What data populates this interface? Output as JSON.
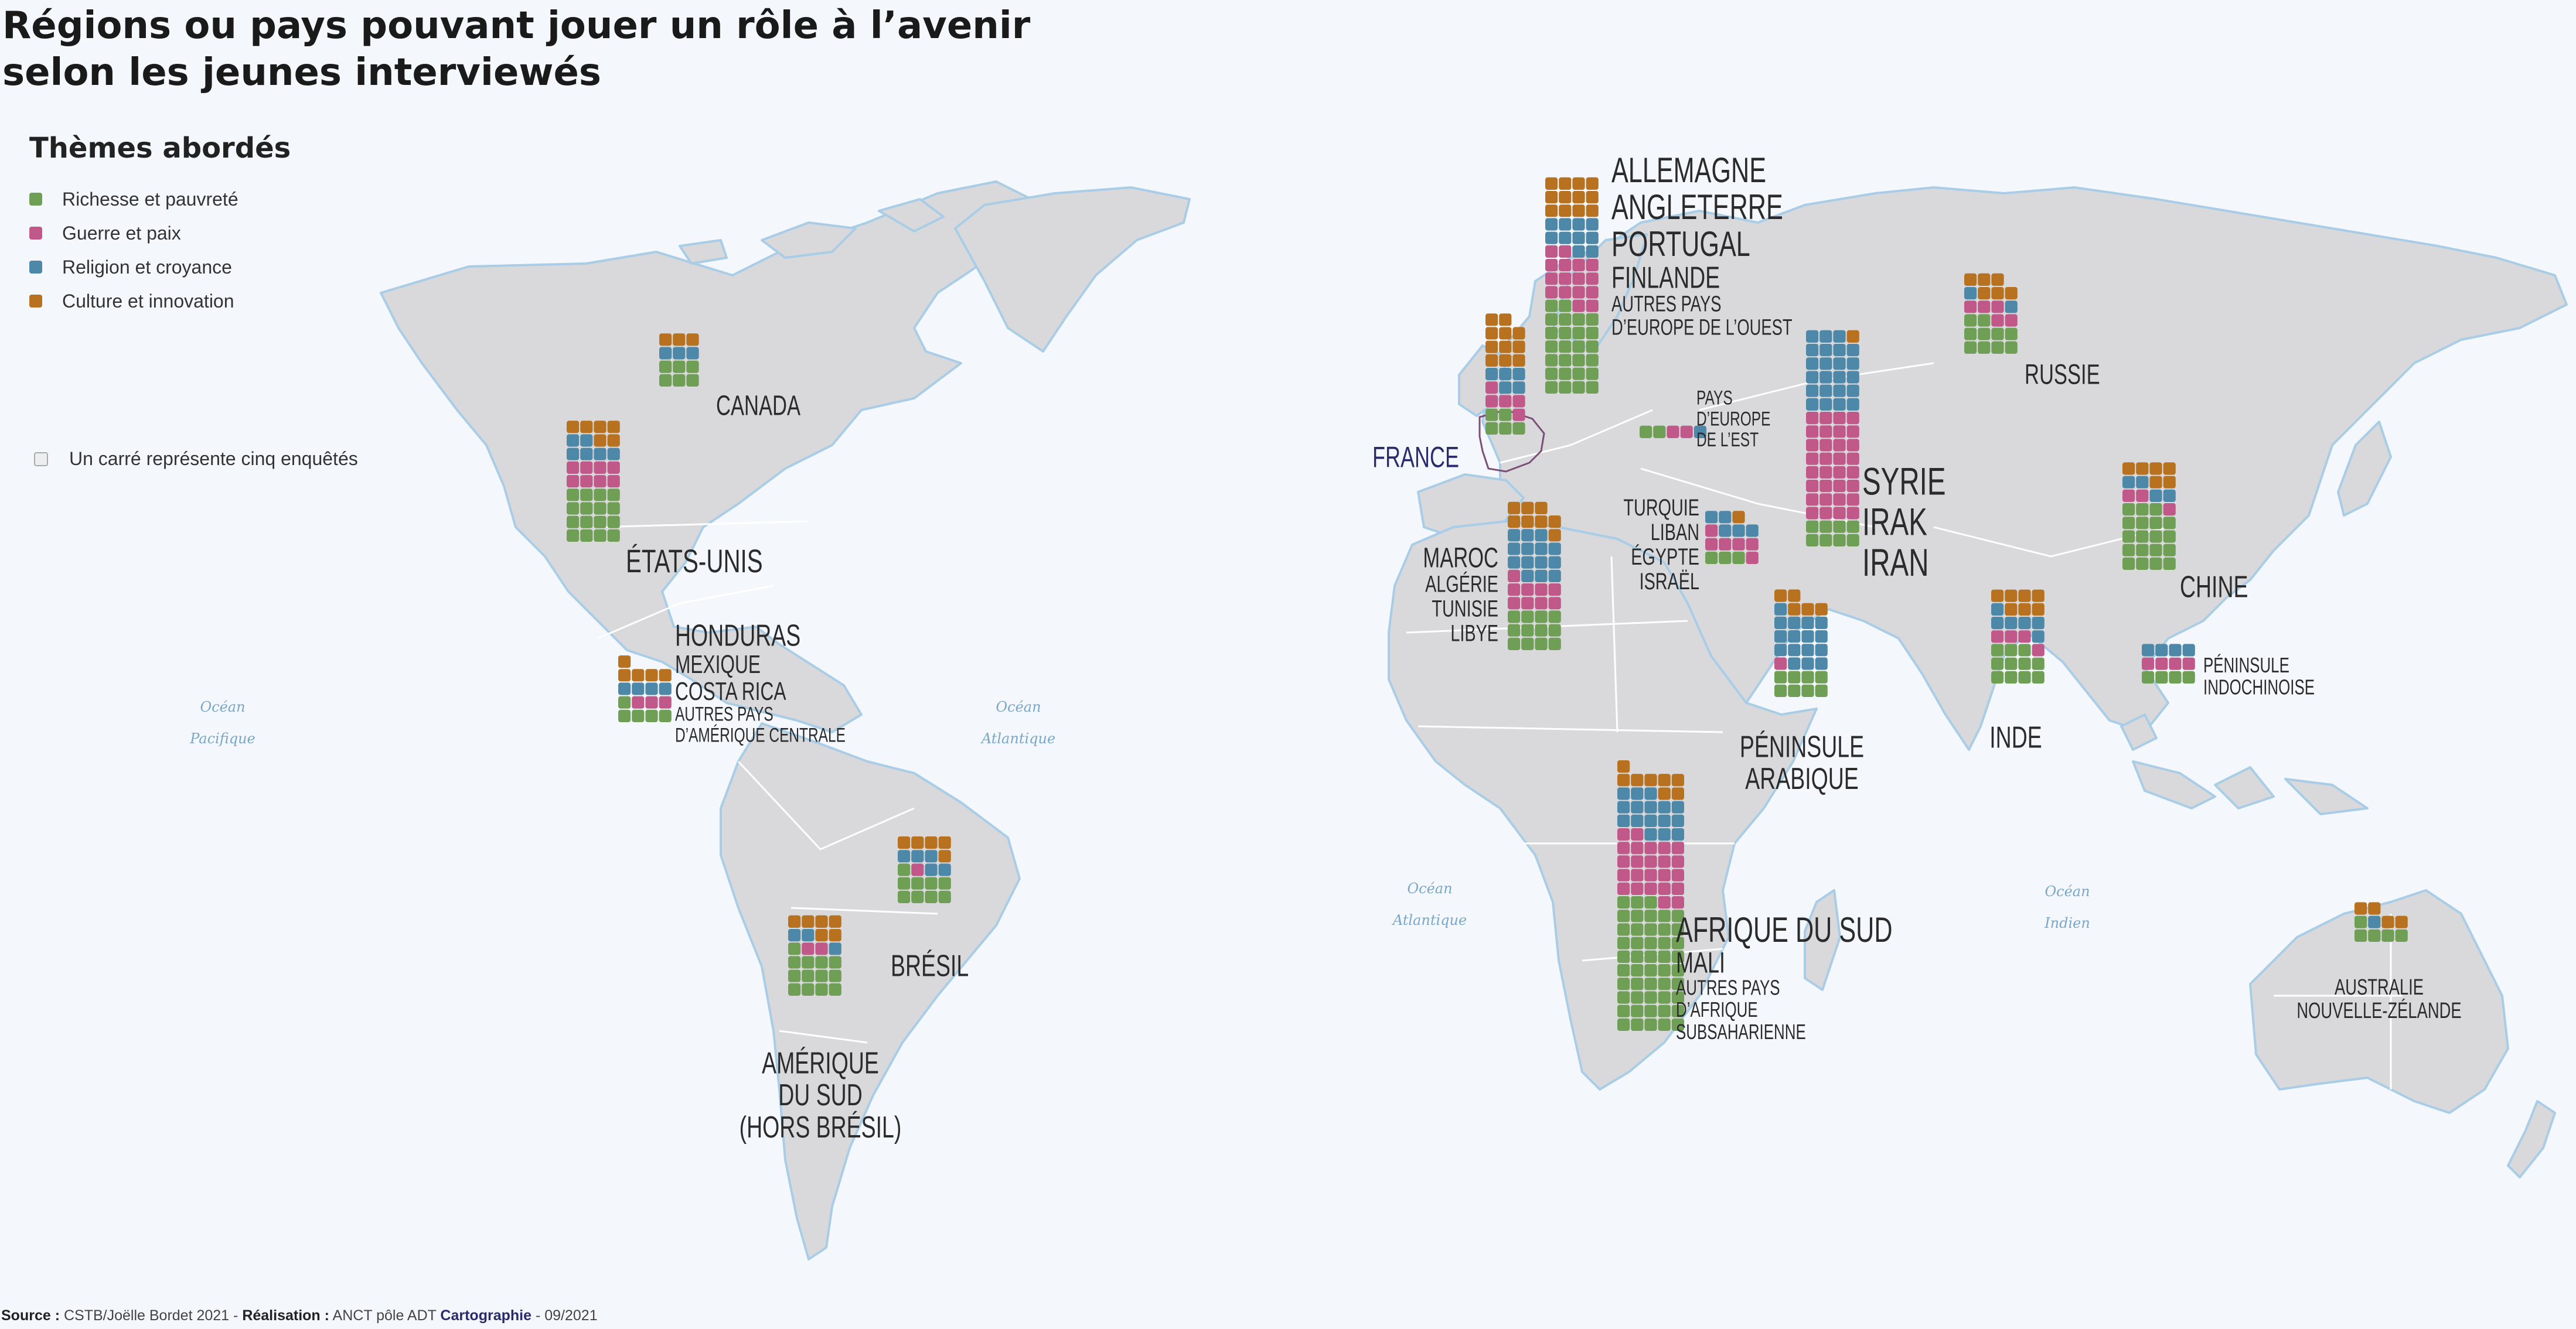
{
  "title_line1": "Régions ou pays pouvant jouer un rôle à l’avenir",
  "title_line2": "selon les jeunes interviewés",
  "legend": {
    "title": "Thèmes abordés",
    "items": [
      {
        "label": "Richesse et pauvreté",
        "color": "#6f9e55"
      },
      {
        "label": "Guerre et paix",
        "color": "#c0588a"
      },
      {
        "label": "Religion et croyance",
        "color": "#4e88a8"
      },
      {
        "label": "Culture et innovation",
        "color": "#b8711e"
      }
    ],
    "unit": "Un carré représente cinq enquêtés"
  },
  "colors": {
    "land": "#d9d9db",
    "border": "#ffffff",
    "coast": "#a9cde6",
    "ocean": "#f4f8fd",
    "france": "#2b2a6b"
  },
  "source": {
    "label": "Source :",
    "text": " CSTB/Joëlle Bordet 2021 - ",
    "real_label": "Réalisation :",
    "real_text": " ANCT pôle ADT ",
    "cart": "Cartographie",
    "date": " - 09/2021"
  },
  "oceans": [
    {
      "line1": "Océan",
      "line2": "Pacifique"
    },
    {
      "line1": "Océan",
      "line2": "Atlantique"
    },
    {
      "line1": "Océan",
      "line2": "Atlantique"
    },
    {
      "line1": "Océan",
      "line2": "Indien"
    }
  ],
  "groups": [
    {
      "lines": [
        "CANADA"
      ],
      "counts": [
        6,
        0,
        3,
        3
      ]
    },
    {
      "lines": [
        "ÉTATS-UNIS"
      ],
      "counts": [
        16,
        8,
        6,
        6
      ]
    },
    {
      "lines": [
        "HONDURAS",
        "MEXIQUE",
        "COSTA RICA",
        "AUTRES PAYS",
        "D’AMÉRIQUE CENTRALE"
      ],
      "counts": [
        5,
        3,
        4,
        5
      ]
    },
    {
      "lines": [
        "BRÉSIL"
      ],
      "counts": [
        9,
        1,
        5,
        5
      ]
    },
    {
      "lines": [
        "AMÉRIQUE",
        "DU SUD",
        "(HORS BRÉSIL)"
      ],
      "counts": [
        13,
        2,
        3,
        6
      ]
    },
    {
      "lines": [
        "FRANCE"
      ],
      "counts": [
        5,
        5,
        5,
        11
      ]
    },
    {
      "lines": [
        "ALLEMAGNE",
        "ANGLETERRE",
        "PORTUGAL",
        "FINLANDE",
        "AUTRES PAYS",
        "D’EUROPE DE L’OUEST"
      ],
      "counts": [
        26,
        16,
        10,
        12
      ]
    },
    {
      "lines": [
        "PAYS",
        "D’EUROPE",
        "DE L’EST"
      ],
      "counts": [
        2,
        2,
        1,
        0
      ]
    },
    {
      "lines": [
        "MAROC",
        "ALGÉRIE",
        "TUNISIE",
        "LIBYE"
      ],
      "counts": [
        12,
        9,
        14,
        8
      ]
    },
    {
      "lines": [
        "TURQUIE",
        "LIBAN",
        "ÉGYPTE",
        "ISRAËL"
      ],
      "counts": [
        3,
        6,
        5,
        1
      ]
    },
    {
      "lines": [
        "SYRIE",
        "IRAK",
        "IRAN"
      ],
      "counts": [
        8,
        32,
        23,
        1
      ]
    },
    {
      "lines": [
        "PÉNINSULE",
        "ARABIQUE"
      ],
      "counts": [
        8,
        1,
        16,
        5
      ]
    },
    {
      "lines": [
        "AFRIQUE DU SUD",
        "MALI",
        "AUTRES PAYS",
        "D’AFRIQUE",
        "SUBSAHARIENNE"
      ],
      "counts": [
        48,
        24,
        16,
        8
      ]
    },
    {
      "lines": [
        "RUSSIE"
      ],
      "counts": [
        10,
        5,
        2,
        6
      ]
    },
    {
      "lines": [
        "CHINE"
      ],
      "counts": [
        19,
        3,
        4,
        6
      ]
    },
    {
      "lines": [
        "INDE"
      ],
      "counts": [
        11,
        4,
        6,
        7
      ]
    },
    {
      "lines": [
        "PÉNINSULE",
        "INDOCHINOISE"
      ],
      "counts": [
        4,
        4,
        4,
        0
      ]
    },
    {
      "lines": [
        "AUSTRALIE",
        "NOUVELLE-ZÉLANDE"
      ],
      "counts": [
        5,
        0,
        1,
        4
      ]
    }
  ]
}
